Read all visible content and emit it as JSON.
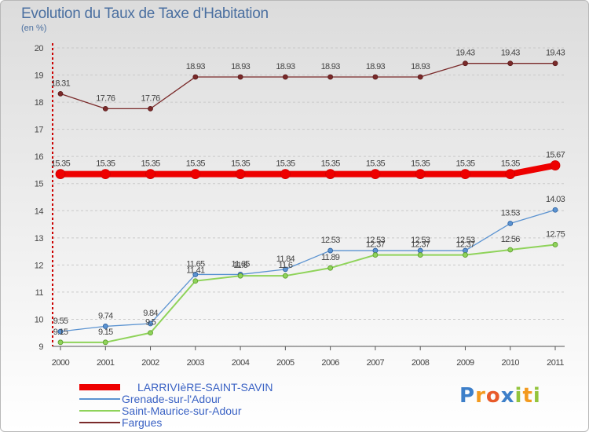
{
  "header": {
    "title": "Evolution du Taux de Taxe d'Habitation",
    "unit": "(en %)"
  },
  "chart_data": {
    "type": "line",
    "title": "Evolution du Taux de Taxe d'Habitation",
    "ylabel": "(en %)",
    "xlabel": "",
    "ylim": [
      9,
      20
    ],
    "yticks": [
      9,
      10,
      11,
      12,
      13,
      14,
      15,
      16,
      17,
      18,
      19,
      20
    ],
    "x": [
      "2000",
      "2001",
      "2002",
      "2003",
      "2004",
      "2005",
      "2006",
      "2007",
      "2008",
      "2009",
      "2010",
      "2011"
    ],
    "grid": "horizontal dashed",
    "legend_position": "bottom-left",
    "series": [
      {
        "name": "Fargues",
        "color": "#7a2a2a",
        "values": [
          18.31,
          17.76,
          17.76,
          18.93,
          18.93,
          18.93,
          18.93,
          18.93,
          18.93,
          19.43,
          19.43,
          19.43
        ],
        "labels": [
          "18.31",
          "17.76",
          "17.76",
          "18.93",
          "18.93",
          "18.93",
          "18.93",
          "18.93",
          "18.93",
          "19.43",
          "19.43",
          "19.43"
        ]
      },
      {
        "name": "LARRIVIèRE-SAINT-SAVIN",
        "color": "#ee0000",
        "values": [
          15.35,
          15.35,
          15.35,
          15.35,
          15.35,
          15.35,
          15.35,
          15.35,
          15.35,
          15.35,
          15.35,
          15.67
        ],
        "labels": [
          "15.35",
          "15.35",
          "15.35",
          "15.35",
          "15.35",
          "15.35",
          "15.35",
          "15.35",
          "15.35",
          "15.35",
          "15.35",
          "15.67"
        ]
      },
      {
        "name": "Grenade-sur-l'Adour",
        "color": "#5b93d1",
        "values": [
          9.55,
          9.74,
          9.84,
          11.65,
          11.65,
          11.84,
          12.53,
          12.53,
          12.53,
          12.53,
          13.53,
          14.03
        ],
        "labels": [
          "9.55",
          "9.74",
          "9.84",
          "11.65",
          "11.65",
          "11.84",
          "12.53",
          "12.53",
          "12.53",
          "12.53",
          "13.53",
          "14.03"
        ]
      },
      {
        "name": "Saint-Maurice-sur-Adour",
        "color": "#8fd35a",
        "values": [
          9.15,
          9.15,
          9.5,
          11.41,
          11.6,
          11.6,
          11.89,
          12.37,
          12.37,
          12.37,
          12.56,
          12.75
        ],
        "labels": [
          "9.15",
          "9.15",
          "9.5",
          "11.41",
          "11.6",
          "11.6",
          "11.89",
          "12.37",
          "12.37",
          "12.37",
          "12.56",
          "12.75"
        ]
      }
    ]
  },
  "legend": [
    {
      "name": "LARRIVIèRE-SAINT-SAVIN",
      "color": "#ee0000",
      "thick": true
    },
    {
      "name": "Grenade-sur-l'Adour",
      "color": "#5b93d1",
      "thick": false
    },
    {
      "name": "Saint-Maurice-sur-Adour",
      "color": "#8fd35a",
      "thick": false
    },
    {
      "name": "Fargues",
      "color": "#7a2a2a",
      "thick": false
    }
  ],
  "logo": {
    "letters": [
      "P",
      "r",
      "o",
      "x",
      "i",
      "t",
      "i"
    ],
    "colors": [
      "#3d7fc9",
      "#f39a1e",
      "#e85a2a",
      "#3d7fc9",
      "#93c43c",
      "#f39a1e",
      "#93c43c"
    ]
  }
}
